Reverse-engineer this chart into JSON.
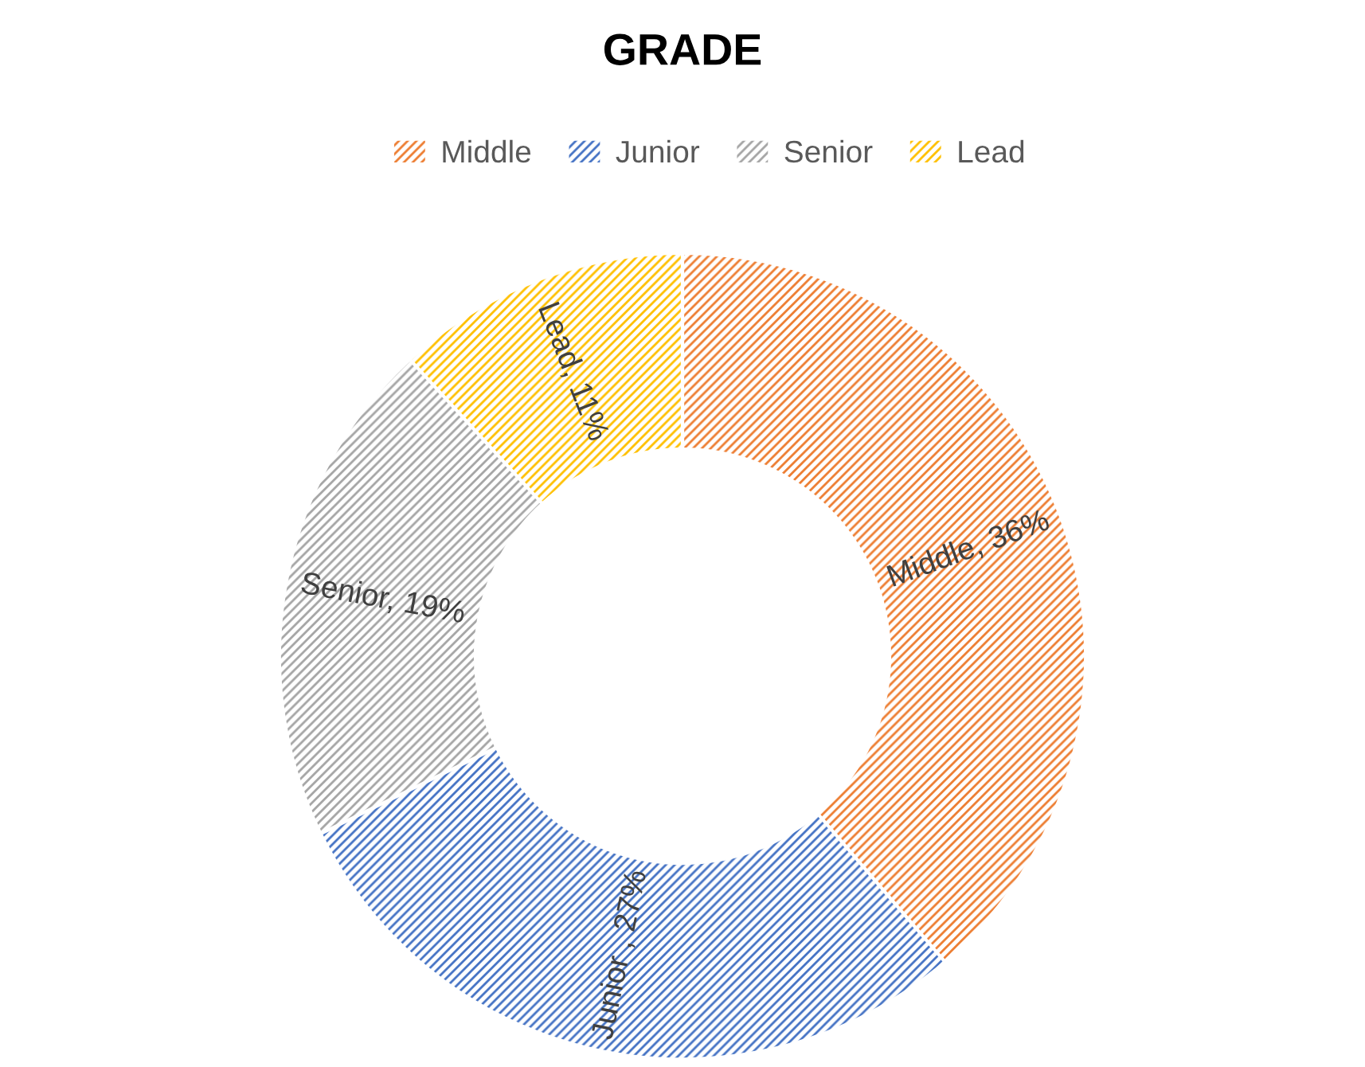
{
  "chart_data": {
    "type": "donut",
    "title": "GRADE",
    "categories": [
      "Middle",
      "Junior",
      "Senior",
      "Lead"
    ],
    "values": [
      36,
      27,
      19,
      11
    ],
    "colors": [
      "#ed7d31",
      "#4472c4",
      "#a5a5a5",
      "#ffc000"
    ],
    "value_labels": [
      "Middle, 36%",
      "Junior , 27%",
      "Senior, 19%",
      "Lead, 11%"
    ],
    "legend": "top"
  }
}
